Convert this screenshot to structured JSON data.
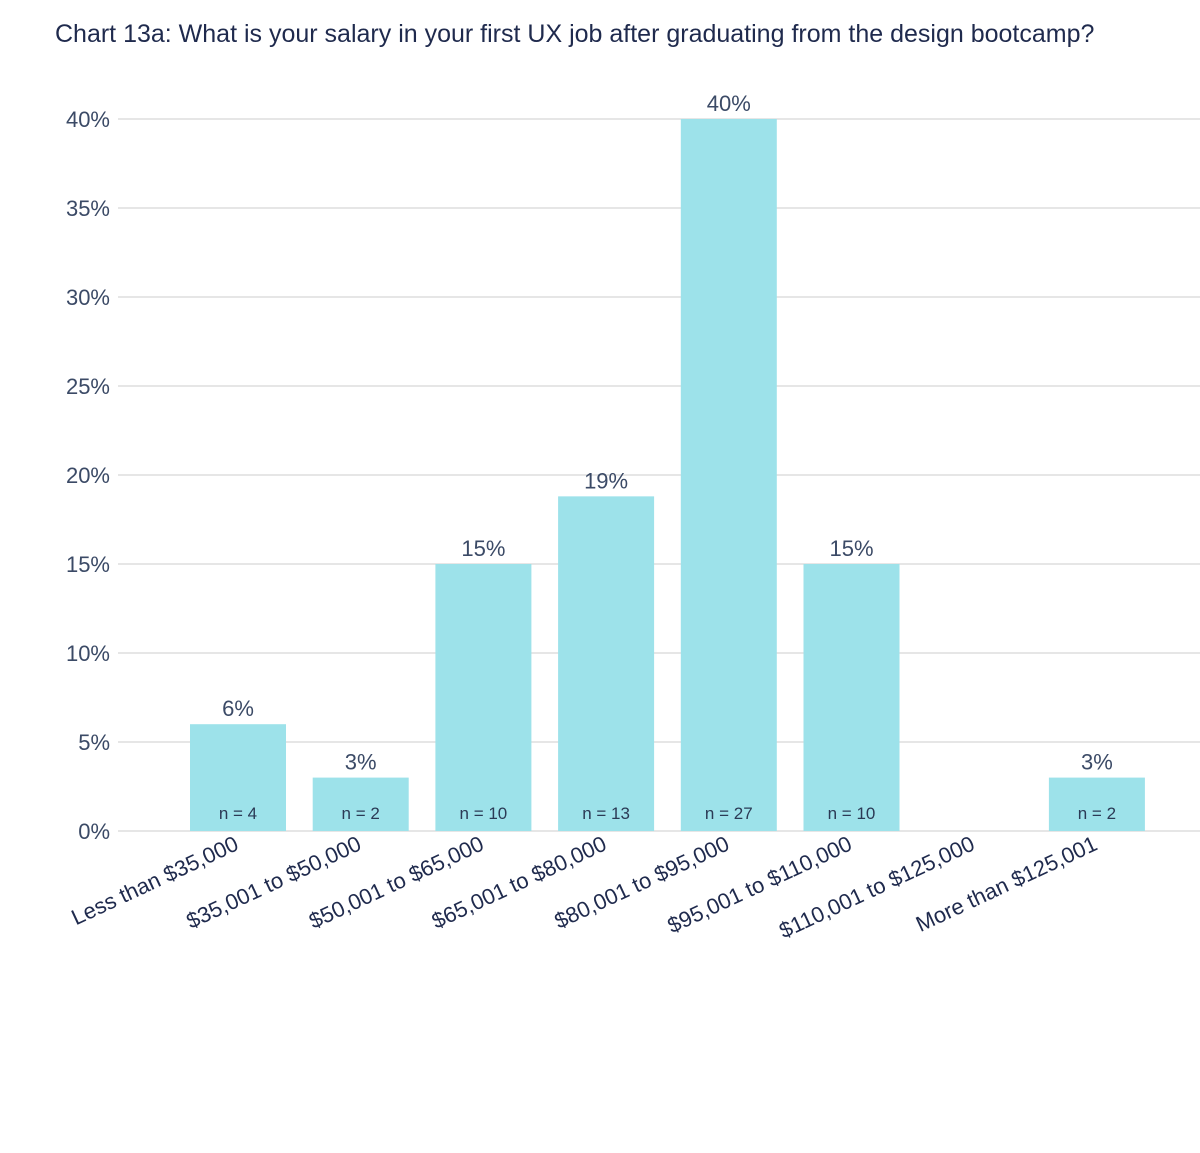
{
  "chart_data": {
    "type": "bar",
    "title": "Chart 13a: What is your salary in your first UX job after graduating from the design bootcamp?",
    "xlabel": "",
    "ylabel": "",
    "ylim": [
      0,
      40
    ],
    "y_ticks": [
      0,
      5,
      10,
      15,
      20,
      25,
      30,
      35,
      40
    ],
    "y_tick_labels": [
      "0%",
      "5%",
      "10%",
      "15%",
      "20%",
      "25%",
      "30%",
      "35%",
      "40%"
    ],
    "grid": true,
    "categories": [
      "Less than $35,000",
      "$35,001 to $50,000",
      "$50,001 to $65,000",
      "$65,001 to $80,000",
      "$80,001 to $95,000",
      "$95,001 to $110,000",
      "$110,001 to $125,000",
      "More than $125,001"
    ],
    "values": [
      6,
      3,
      15,
      18.8,
      40,
      15,
      0,
      3
    ],
    "value_labels": [
      "6%",
      "3%",
      "15%",
      "19%",
      "40%",
      "15%",
      "",
      "3%"
    ],
    "n_labels": [
      "n = 4",
      "n = 2",
      "n = 10",
      "n = 13",
      "n = 27",
      "n = 10",
      "",
      "n = 2"
    ],
    "colors": {
      "bar": "#9de2ea",
      "grid": "#e6e6e6",
      "tick_text": "#3b4a66",
      "title_text": "#1f2a4d"
    }
  }
}
